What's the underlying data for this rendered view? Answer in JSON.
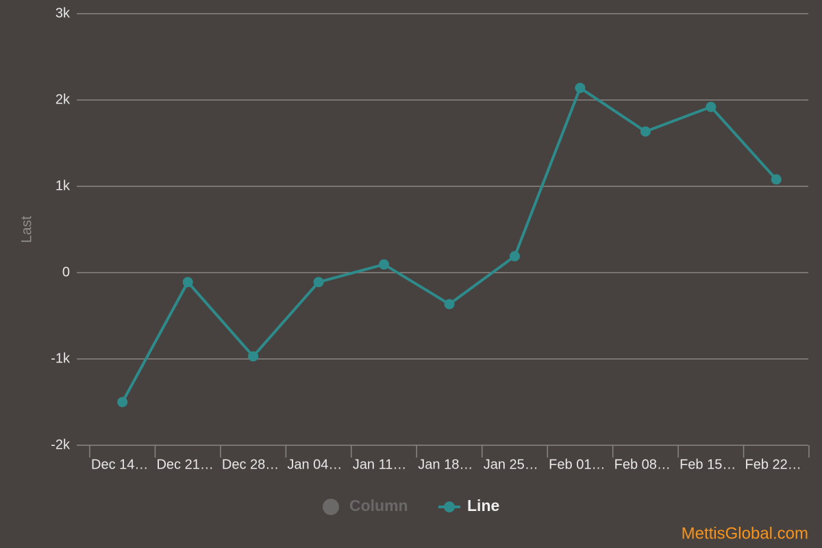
{
  "chart_data": {
    "type": "line",
    "y_label": "Last",
    "categories": [
      "Dec 14…",
      "Dec 21…",
      "Dec 28…",
      "Jan 04…",
      "Jan 11…",
      "Jan 18…",
      "Jan 25…",
      "Feb 01…",
      "Feb 08…",
      "Feb 15…",
      "Feb 22…"
    ],
    "series": [
      {
        "name": "Column",
        "color": "#6b6868",
        "visible": false,
        "values": [
          null,
          null,
          null,
          null,
          null,
          null,
          null,
          null,
          null,
          null,
          null
        ]
      },
      {
        "name": "Line",
        "color": "#2e8b8b",
        "visible": true,
        "values": [
          -1500,
          -110,
          -970,
          -110,
          95,
          -365,
          190,
          2140,
          1635,
          1920,
          1080
        ]
      }
    ],
    "ylim": [
      -2000,
      3000
    ],
    "yticks": [
      {
        "value": -2000,
        "label": "-2k"
      },
      {
        "value": -1000,
        "label": "-1k"
      },
      0,
      {
        "value": 1000,
        "label": "1k"
      },
      {
        "value": 2000,
        "label": "2k"
      },
      {
        "value": 3000,
        "label": "3k"
      }
    ],
    "grid": true,
    "legend": "bottom",
    "watermark": "MettisGlobal.com"
  }
}
